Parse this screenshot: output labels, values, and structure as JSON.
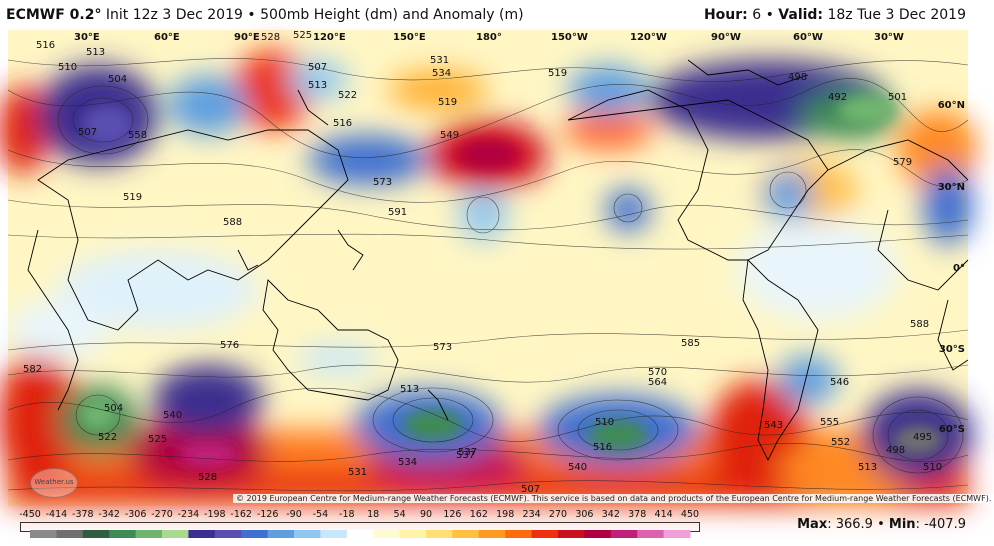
{
  "header": {
    "model": "ECMWF 0.2",
    "deg": "°",
    "init": "Init 12z 3 Dec 2019",
    "bullet": "•",
    "product": "500mb Height (dm) and Anomaly (m)",
    "hour_label": "Hour:",
    "hour_value": "6",
    "valid_label": "Valid:",
    "valid_value": "18z Tue 3 Dec 2019"
  },
  "map": {
    "lon_labels": [
      "30°E",
      "60°E",
      "90°E",
      "120°E",
      "150°E",
      "180°",
      "150°W",
      "120°W",
      "90°W",
      "60°W",
      "30°W"
    ],
    "lat_labels": [
      "60°N",
      "30°N",
      "0°",
      "30°S",
      "60°S"
    ],
    "contour_labels": [
      "516",
      "513",
      "510",
      "504",
      "507",
      "528",
      "525",
      "519",
      "531",
      "534",
      "522",
      "516",
      "513",
      "519",
      "558",
      "549",
      "573",
      "591",
      "588",
      "579",
      "573",
      "585",
      "576",
      "582",
      "588",
      "513",
      "507",
      "510",
      "498",
      "504",
      "537",
      "546",
      "543",
      "540",
      "552",
      "555",
      "564",
      "570",
      "519",
      "528",
      "531",
      "534",
      "537",
      "540",
      "525",
      "522",
      "516",
      "513",
      "510",
      "507",
      "501",
      "498",
      "495",
      "492"
    ],
    "copyright": "© 2019 European Centre for Medium-range Weather Forecasts (ECMWF). This service is based on data and products of the European Centre for Medium-range Weather Forecasts (ECMWF).",
    "logo_text": "Weather.us"
  },
  "colorbar": {
    "ticks": [
      "-450",
      "-414",
      "-378",
      "-342",
      "-306",
      "-270",
      "-234",
      "-198",
      "-162",
      "-126",
      "-90",
      "-54",
      "-18",
      "18",
      "54",
      "90",
      "126",
      "162",
      "198",
      "234",
      "270",
      "306",
      "342",
      "378",
      "414",
      "450"
    ],
    "colors": [
      "#8a8a8a",
      "#6f6f6f",
      "#2f5f3f",
      "#3f8a55",
      "#6fb56f",
      "#a9d98f",
      "#3b2f8f",
      "#5a4fb0",
      "#3f6fd0",
      "#5f9fe0",
      "#8fc7f0",
      "#c7e7fa",
      "#ffffff",
      "#fffbd0",
      "#fff3a8",
      "#ffe070",
      "#ffc040",
      "#ff9a20",
      "#ff6a10",
      "#ee3010",
      "#c81020",
      "#b00040",
      "#c0207a",
      "#e060b0",
      "#f0a0d8"
    ]
  },
  "stats": {
    "max_label": "Max",
    "max_value": "366.9",
    "min_label": "Min",
    "min_value": "-407.9"
  }
}
